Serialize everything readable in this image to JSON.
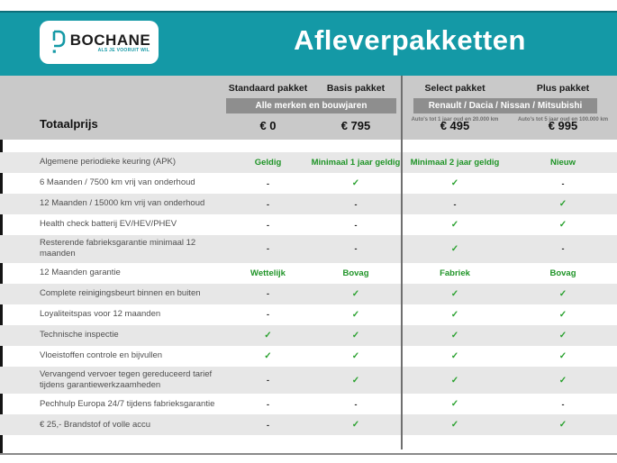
{
  "header": {
    "title": "Afleverpakketten",
    "logo": {
      "name": "BOCHANE",
      "tagline": "ALS JE VOORUIT WIL"
    }
  },
  "table": {
    "columns": [
      {
        "label": "Standaard pakket"
      },
      {
        "label": "Basis pakket"
      },
      {
        "label": "Select pakket"
      },
      {
        "label": "Plus pakket"
      }
    ],
    "group_badges": [
      {
        "label": "Alle merken en bouwjaren"
      },
      {
        "label": "Renault / Dacia / Nissan / Mitsubishi"
      }
    ],
    "conditions": [
      "Auto's tot 1 jaar oud en 20.000 km",
      "Auto's tot 5 jaar oud en 100.000 km"
    ],
    "total_label": "Totaalprijs",
    "prices": [
      "€ 0",
      "€ 795",
      "€ 495",
      "€ 995"
    ],
    "rows": [
      {
        "label": "Algemene periodieke keuring (APK)",
        "values": [
          "Geldig",
          "Minimaal 1 jaar geldig",
          "Minimaal 2 jaar geldig",
          "Nieuw"
        ]
      },
      {
        "label": "6 Maanden / 7500 km vrij van onderhoud",
        "values": [
          "-",
          "✓",
          "✓",
          "-"
        ]
      },
      {
        "label": "12 Maanden / 15000 km vrij van onderhoud",
        "values": [
          "-",
          "-",
          "-",
          "✓"
        ]
      },
      {
        "label": "Health check batterij EV/HEV/PHEV",
        "values": [
          "-",
          "-",
          "✓",
          "✓"
        ]
      },
      {
        "label": "Resterende fabrieksgarantie minimaal 12 maanden",
        "values": [
          "-",
          "-",
          "✓",
          "-"
        ]
      },
      {
        "label": "12 Maanden  garantie",
        "values": [
          "Wettelijk",
          "Bovag",
          "Fabriek",
          "Bovag"
        ]
      },
      {
        "label": "Complete reinigingsbeurt binnen en buiten",
        "values": [
          "-",
          "✓",
          "✓",
          "✓"
        ]
      },
      {
        "label": "Loyaliteitspas voor 12 maanden",
        "values": [
          "-",
          "✓",
          "✓",
          "✓"
        ]
      },
      {
        "label": "Technische inspectie",
        "values": [
          "✓",
          "✓",
          "✓",
          "✓"
        ]
      },
      {
        "label": "Vloeistoffen controle en bijvullen",
        "values": [
          "✓",
          "✓",
          "✓",
          "✓"
        ]
      },
      {
        "label": "Vervangend vervoer tegen gereduceerd tarief tijdens garantiewerkzaamheden",
        "values": [
          "-",
          "✓",
          "✓",
          "✓"
        ]
      },
      {
        "label": "Pechhulp Europa 24/7 tijdens fabrieksgarantie",
        "values": [
          "-",
          "-",
          "✓",
          "-"
        ]
      },
      {
        "label": "€ 25,- Brandstof of  volle accu",
        "values": [
          "-",
          "✓",
          "✓",
          "✓"
        ]
      }
    ]
  },
  "colors": {
    "accent_teal": "#1499a6",
    "check_green": "#2aa12f",
    "header_band_grey": "#c9c9c9",
    "row_stripe_grey": "#e7e7e7",
    "badge_grey": "#8e8e8e"
  }
}
